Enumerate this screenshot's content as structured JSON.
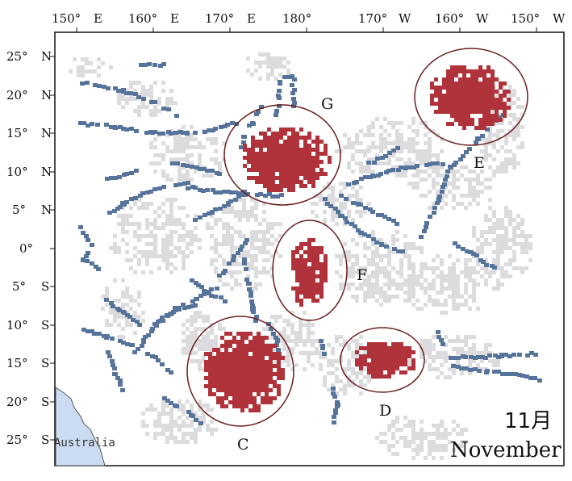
{
  "top_axis": [
    {
      "deg": "150°",
      "hem": "E"
    },
    {
      "deg": "160°",
      "hem": "E"
    },
    {
      "deg": "170°",
      "hem": "E"
    },
    {
      "deg": "180°",
      "hem": ""
    },
    {
      "deg": "170°",
      "hem": "W"
    },
    {
      "deg": "160°",
      "hem": "W"
    },
    {
      "deg": "150°",
      "hem": "W"
    }
  ],
  "left_axis": [
    {
      "deg": "25°",
      "hem": "N"
    },
    {
      "deg": "20°",
      "hem": "N"
    },
    {
      "deg": "15°",
      "hem": "N"
    },
    {
      "deg": "10°",
      "hem": "N"
    },
    {
      "deg": "5°",
      "hem": "N"
    },
    {
      "deg": "0°",
      "hem": ""
    },
    {
      "deg": "5°",
      "hem": "S"
    },
    {
      "deg": "10°",
      "hem": "S"
    },
    {
      "deg": "15°",
      "hem": "S"
    },
    {
      "deg": "20°",
      "hem": "S"
    },
    {
      "deg": "25°",
      "hem": "S"
    }
  ],
  "regions": [
    {
      "label": "G"
    },
    {
      "label": "E"
    },
    {
      "label": "F"
    },
    {
      "label": "C"
    },
    {
      "label": "D"
    }
  ],
  "land_label": "Australia",
  "month_zh": "11月",
  "month_en": "November",
  "colors": {
    "hotspot": "#b0323a",
    "track": "#56739b",
    "background_cells": "#dcdcdf",
    "land": "#cbdcf2",
    "circle": "#6b1d1d"
  }
}
